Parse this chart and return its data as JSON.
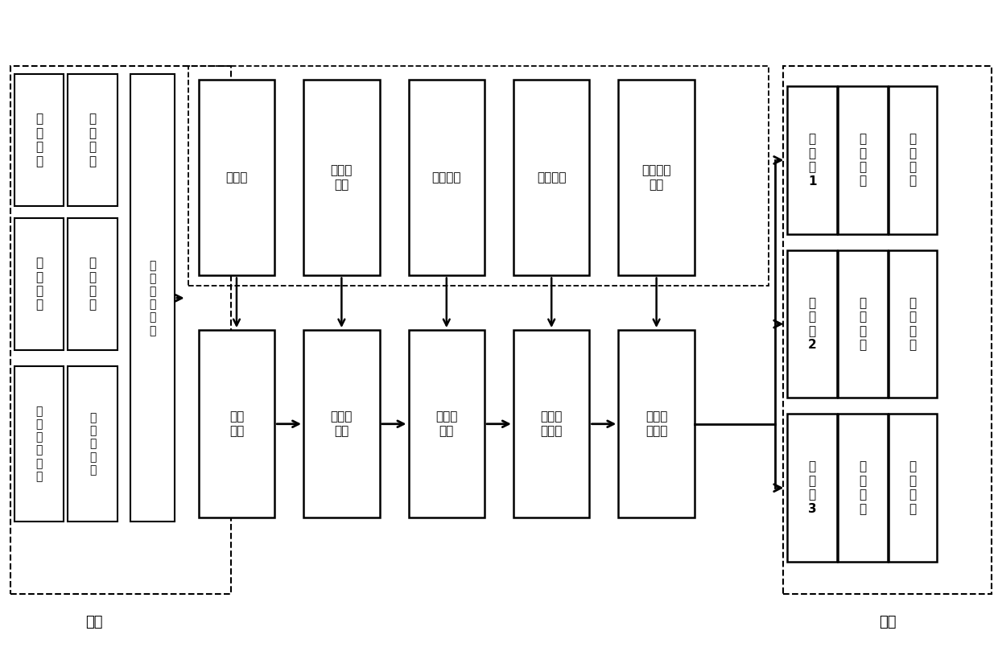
{
  "bg_color": "#ffffff",
  "text_color": "#000000",
  "input_label": "输入",
  "output_label": "输出",
  "method_boxes": [
    "牛耕法",
    "进退错\n距法",
    "可视图法",
    "优化算法",
    "时间成本\n函数"
  ],
  "process_boxes": [
    "仓面拆分",
    "子区域规划",
    "子区域连通",
    "仓面轨迹优化",
    "机群任务划分"
  ],
  "output_rows": [
    [
      "无人机1",
      "作业轨迹",
      "施工参数"
    ],
    [
      "无人机2",
      "作业轨迹",
      "施工参数"
    ],
    [
      "无人机3",
      "作业轨迹",
      "施工参数"
    ]
  ]
}
